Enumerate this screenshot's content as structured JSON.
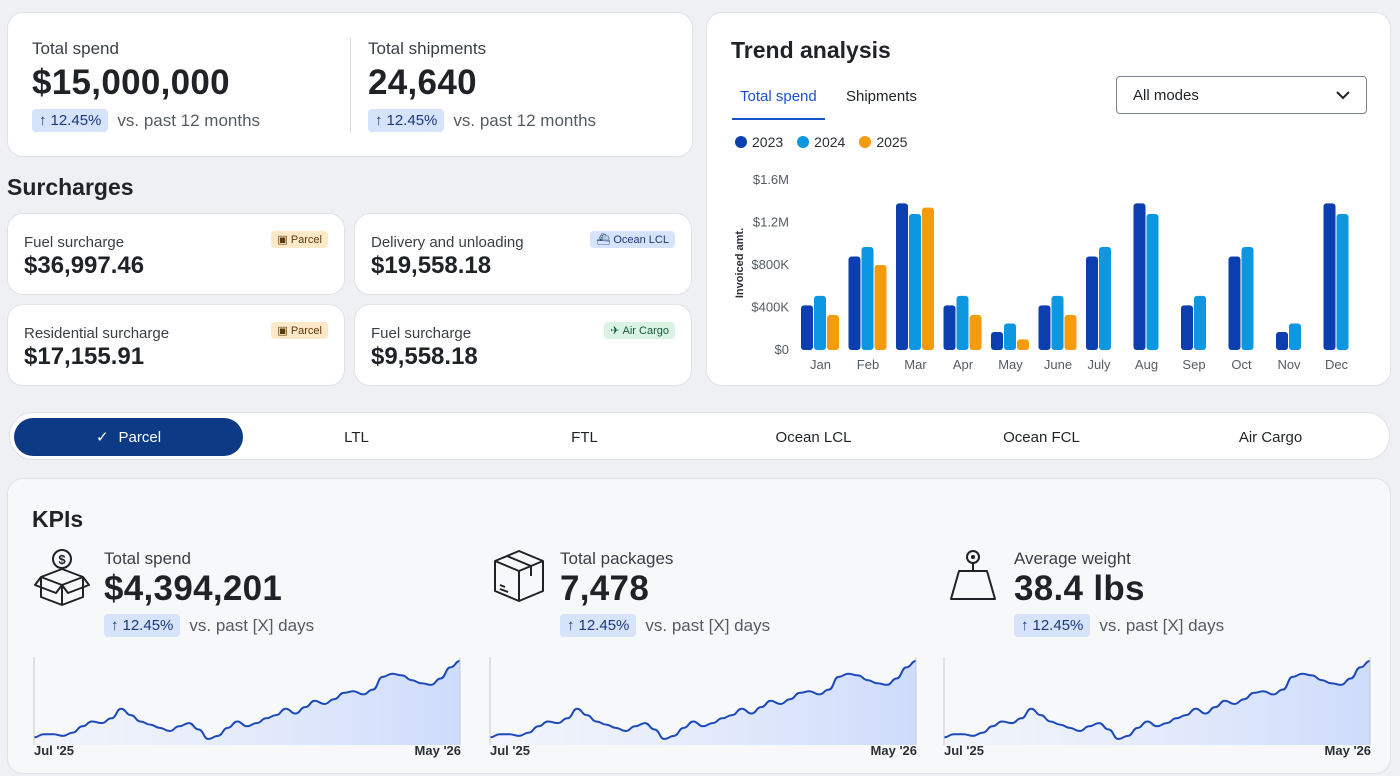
{
  "totals": [
    {
      "label": "Total spend",
      "value": "$15,000,000",
      "delta": "12.45%",
      "delta_text": "vs. past 12 months"
    },
    {
      "label": "Total shipments",
      "value": "24,640",
      "delta": "12.45%",
      "delta_text": "vs. past 12 months"
    }
  ],
  "surcharges": {
    "title": "Surcharges",
    "items": [
      {
        "label": "Fuel surcharge",
        "value": "$36,997.46",
        "tag": "Parcel",
        "tag_kind": "parcel"
      },
      {
        "label": "Delivery and unloading",
        "value": "$19,558.18",
        "tag": "Ocean LCL",
        "tag_kind": "ocean"
      },
      {
        "label": "Residential surcharge",
        "value": "$17,155.91",
        "tag": "Parcel",
        "tag_kind": "parcel"
      },
      {
        "label": "Fuel surcharge",
        "value": "$9,558.18",
        "tag": "Air Cargo",
        "tag_kind": "air"
      }
    ]
  },
  "trend": {
    "title": "Trend analysis",
    "tabs": [
      "Total spend",
      "Shipments"
    ],
    "active_tab": "Total spend",
    "mode_select": "All modes",
    "colors": {
      "2023": "#0b3fb0",
      "2024": "#0d97e0",
      "2025": "#f59b0d"
    }
  },
  "chart_data": {
    "type": "bar",
    "title": "",
    "xlabel": "",
    "ylabel": "Invoiced amt.",
    "categories": [
      "Jan",
      "Feb",
      "Mar",
      "Apr",
      "May",
      "June",
      "July",
      "Aug",
      "Sep",
      "Oct",
      "Nov",
      "Dec"
    ],
    "ylim": [
      0,
      1600000
    ],
    "yticks": [
      "$0",
      "$400K",
      "$800K",
      "$1.2M",
      "$1.6M"
    ],
    "grid": false,
    "legend": "top-left",
    "series": [
      {
        "name": "2023",
        "values": [
          420000,
          880000,
          1380000,
          420000,
          170000,
          420000,
          880000,
          1380000,
          420000,
          880000,
          170000,
          1380000
        ]
      },
      {
        "name": "2024",
        "values": [
          510000,
          970000,
          1280000,
          510000,
          250000,
          510000,
          970000,
          1280000,
          510000,
          970000,
          250000,
          1280000
        ]
      },
      {
        "name": "2025",
        "values": [
          330000,
          800000,
          1340000,
          330000,
          100000,
          330000,
          null,
          null,
          null,
          null,
          null,
          null
        ]
      }
    ]
  },
  "modes": {
    "items": [
      "Parcel",
      "LTL",
      "FTL",
      "Ocean LCL",
      "Ocean FCL",
      "Air Cargo"
    ],
    "active": "Parcel"
  },
  "kpis": {
    "title": "KPIs",
    "items": [
      {
        "label": "Total spend",
        "value": "$4,394,201",
        "delta": "12.45%",
        "delta_text": "vs. past [X] days",
        "icon": "money-box-icon",
        "x_start": "Jul '25",
        "x_end": "May '26"
      },
      {
        "label": "Total packages",
        "value": "7,478",
        "delta": "12.45%",
        "delta_text": "vs. past [X] days",
        "icon": "package-icon",
        "x_start": "Jul '25",
        "x_end": "May '26"
      },
      {
        "label": "Average weight",
        "value": "38.4 lbs",
        "delta": "12.45%",
        "delta_text": "vs. past [X] days",
        "icon": "weight-icon",
        "x_start": "Jul '25",
        "x_end": "May '26"
      }
    ],
    "spark_values": [
      12,
      14,
      14,
      13,
      15,
      19,
      22,
      21,
      24,
      30,
      26,
      22,
      20,
      18,
      16,
      19,
      21,
      17,
      11,
      13,
      18,
      22,
      19,
      21,
      24,
      26,
      30,
      27,
      31,
      35,
      33,
      36,
      40,
      41,
      39,
      42,
      50,
      52,
      51,
      48,
      46,
      45,
      49,
      56,
      60
    ]
  }
}
